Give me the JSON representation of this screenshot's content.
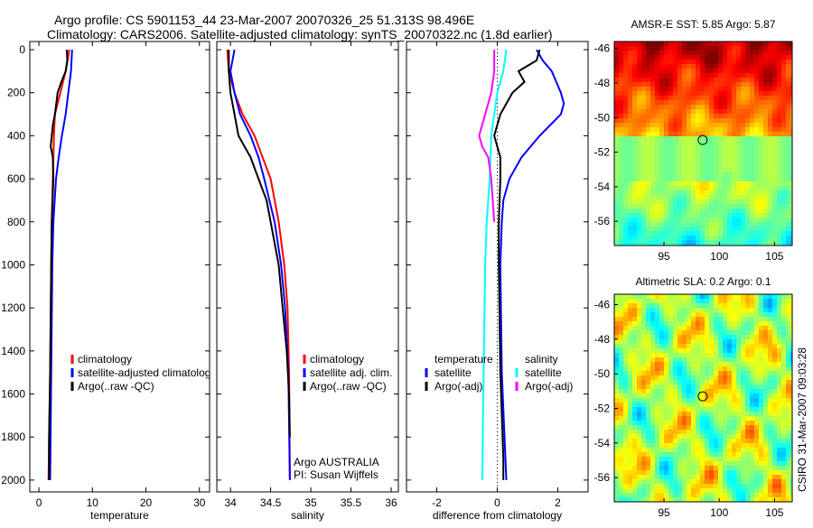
{
  "title_line1": "Argo profile: CS 5901153_44 23-Mar-2007 20070326_25 51.313S 98.496E",
  "title_line2": "Climatology: CARS2006. Satellite-adjusted climatology: synTS_20070322.nc (1.8d earlier)",
  "credit": "CSIRO 31-Mar-2007 09:03:28",
  "colors": {
    "red": "#ff0000",
    "blue": "#0000ff",
    "black": "#000000",
    "cyan": "#00ffff",
    "magenta": "#ff00ff"
  },
  "chart_data": [
    {
      "type": "line",
      "id": "temperature",
      "xlabel": "temperature",
      "ylabel": "depth",
      "xlim": [
        -1.7,
        31.9
      ],
      "ylim": [
        -38,
        2055
      ],
      "xticks": [
        "0",
        "10",
        "20",
        "30"
      ],
      "xtick_values": [
        0,
        10,
        20,
        30
      ],
      "yticks": [
        "0",
        "200",
        "400",
        "600",
        "800",
        "1000",
        "1200",
        "1400",
        "1600",
        "1800",
        "2000"
      ],
      "ytick_values": [
        0,
        200,
        400,
        600,
        800,
        1000,
        1200,
        1400,
        1600,
        1800,
        2000
      ],
      "legend": [
        "climatology",
        "satellite-adjusted climatology",
        "Argo(..raw -QC)"
      ],
      "series": [
        {
          "name": "climatology",
          "color": "#ff0000",
          "depth": [
            0,
            100,
            200,
            300,
            400,
            600,
            800,
            1000,
            1500,
            2000
          ],
          "values": [
            5.7,
            5.0,
            4.0,
            3.0,
            2.8,
            2.6,
            2.4,
            2.3,
            2.1,
            1.8
          ]
        },
        {
          "name": "satellite-adjusted climatology",
          "color": "#0000ff",
          "depth": [
            0,
            100,
            200,
            300,
            400,
            500,
            600,
            800,
            1000,
            1500,
            2000
          ],
          "values": [
            6.2,
            6.0,
            5.5,
            5.0,
            4.3,
            3.7,
            3.2,
            2.7,
            2.5,
            2.3,
            2.1
          ]
        },
        {
          "name": "Argo(..raw -QC)",
          "color": "#000000",
          "depth": [
            0,
            50,
            100,
            150,
            200,
            300,
            350,
            400,
            450,
            500,
            600,
            800,
            1000,
            1500,
            1800,
            2000
          ],
          "values": [
            5.2,
            5.3,
            5.0,
            4.2,
            3.5,
            3.0,
            2.6,
            2.4,
            2.2,
            2.6,
            2.7,
            2.4,
            2.3,
            2.1,
            1.9,
            1.9
          ]
        }
      ]
    },
    {
      "type": "line",
      "id": "salinity",
      "xlabel": "salinity",
      "xlim": [
        33.83,
        36.09
      ],
      "ylim": [
        -38,
        2055
      ],
      "xticks": [
        "34",
        "34.5",
        "35",
        "35.5",
        "36"
      ],
      "xtick_values": [
        34,
        34.5,
        35,
        35.5,
        36
      ],
      "legend": [
        "climatology",
        "satellite adj. clim.",
        "Argo(..raw -QC)"
      ],
      "annotation": [
        "Argo AUSTRALIA",
        "PI: Susan Wijffels"
      ],
      "series": [
        {
          "name": "climatology",
          "color": "#ff0000",
          "depth": [
            0,
            100,
            200,
            300,
            400,
            500,
            600,
            800,
            1000,
            1200,
            1500,
            2000
          ],
          "values": [
            33.96,
            33.98,
            34.05,
            34.15,
            34.3,
            34.4,
            34.5,
            34.6,
            34.67,
            34.71,
            34.73,
            34.74
          ]
        },
        {
          "name": "satellite adj. clim.",
          "color": "#0000ff",
          "depth": [
            0,
            100,
            200,
            300,
            400,
            500,
            600,
            800,
            1000,
            1200,
            1500,
            2000
          ],
          "values": [
            34.05,
            34.0,
            34.05,
            34.12,
            34.25,
            34.35,
            34.42,
            34.55,
            34.63,
            34.68,
            34.72,
            34.74
          ]
        },
        {
          "name": "Argo(..raw -QC)",
          "color": "#000000",
          "depth": [
            0,
            100,
            200,
            300,
            400,
            500,
            600,
            700,
            800,
            1000,
            1200,
            1400,
            1600,
            1800
          ],
          "values": [
            33.98,
            33.98,
            34.0,
            34.05,
            34.1,
            34.25,
            34.35,
            34.45,
            34.5,
            34.6,
            34.65,
            34.7,
            34.73,
            34.74
          ]
        }
      ]
    },
    {
      "type": "line",
      "id": "difference",
      "xlabel": "difference from climatology",
      "xlim": [
        -3,
        3
      ],
      "ylim": [
        -38,
        2055
      ],
      "xticks": [
        "-2",
        "0",
        "2"
      ],
      "xtick_values": [
        -2,
        0,
        2
      ],
      "legend_temperature_heading": "temperature",
      "legend_salinity_heading": "salinity",
      "legend": [
        "satellite",
        "Argo(-adj)",
        "satellite",
        "Argo(-adj)"
      ],
      "series": [
        {
          "name": "temperature satellite",
          "color": "#0000ff",
          "depth": [
            0,
            50,
            100,
            200,
            250,
            300,
            400,
            500,
            600,
            700,
            800,
            1000,
            1500,
            2000
          ],
          "values": [
            1.3,
            1.5,
            1.8,
            2.1,
            2.2,
            2.1,
            1.4,
            0.8,
            0.4,
            0.2,
            0.15,
            0.1,
            0.15,
            0.3
          ]
        },
        {
          "name": "temperature Argo(-adj)",
          "color": "#000000",
          "depth": [
            0,
            50,
            100,
            150,
            200,
            300,
            400,
            500,
            600,
            800,
            1000,
            1500,
            1900,
            2000
          ],
          "values": [
            1.4,
            1.3,
            0.7,
            0.9,
            0.5,
            0.1,
            -0.1,
            0.1,
            0.1,
            0.05,
            0.05,
            0.1,
            0.2,
            0.2
          ]
        },
        {
          "name": "salinity satellite",
          "color": "#00ffff",
          "depth": [
            0,
            100,
            200,
            300,
            400,
            600,
            800,
            1000,
            1500,
            2000
          ],
          "values": [
            0.3,
            0.2,
            0.0,
            -0.1,
            -0.2,
            -0.25,
            -0.35,
            -0.4,
            -0.45,
            -0.5
          ]
        },
        {
          "name": "salinity Argo(-adj)",
          "color": "#ff00ff",
          "depth": [
            0,
            100,
            200,
            300,
            400,
            450,
            500,
            600,
            800
          ],
          "values": [
            -0.1,
            -0.1,
            -0.2,
            -0.4,
            -0.6,
            -0.5,
            -0.3,
            -0.2,
            -0.1
          ]
        }
      ]
    },
    {
      "type": "heatmap",
      "id": "sst-map",
      "title": "AMSR-E SST: 5.85 Argo: 5.87",
      "xlim": [
        90.5,
        106.6
      ],
      "ylim": [
        -57.4,
        -45.6
      ],
      "xticks": [
        "95",
        "100",
        "105"
      ],
      "xtick_values": [
        95,
        100,
        105
      ],
      "yticks": [
        "-46",
        "-48",
        "-50",
        "-52",
        "-54",
        "-56"
      ],
      "ytick_values": [
        -46,
        -48,
        -50,
        -52,
        -54,
        -56
      ],
      "marker": {
        "lon": 98.5,
        "lat": -51.3
      }
    },
    {
      "type": "heatmap",
      "id": "sla-map",
      "title": "Altimetric SLA: 0.2 Argo: 0.1",
      "xlim": [
        90.5,
        106.6
      ],
      "ylim": [
        -57.4,
        -45.4
      ],
      "xticks": [
        "95",
        "100",
        "105"
      ],
      "xtick_values": [
        95,
        100,
        105
      ],
      "yticks": [
        "-46",
        "-48",
        "-50",
        "-52",
        "-54",
        "-56"
      ],
      "ytick_values": [
        -46,
        -48,
        -50,
        -52,
        -54,
        -56
      ],
      "marker": {
        "lon": 98.5,
        "lat": -51.3
      }
    }
  ]
}
